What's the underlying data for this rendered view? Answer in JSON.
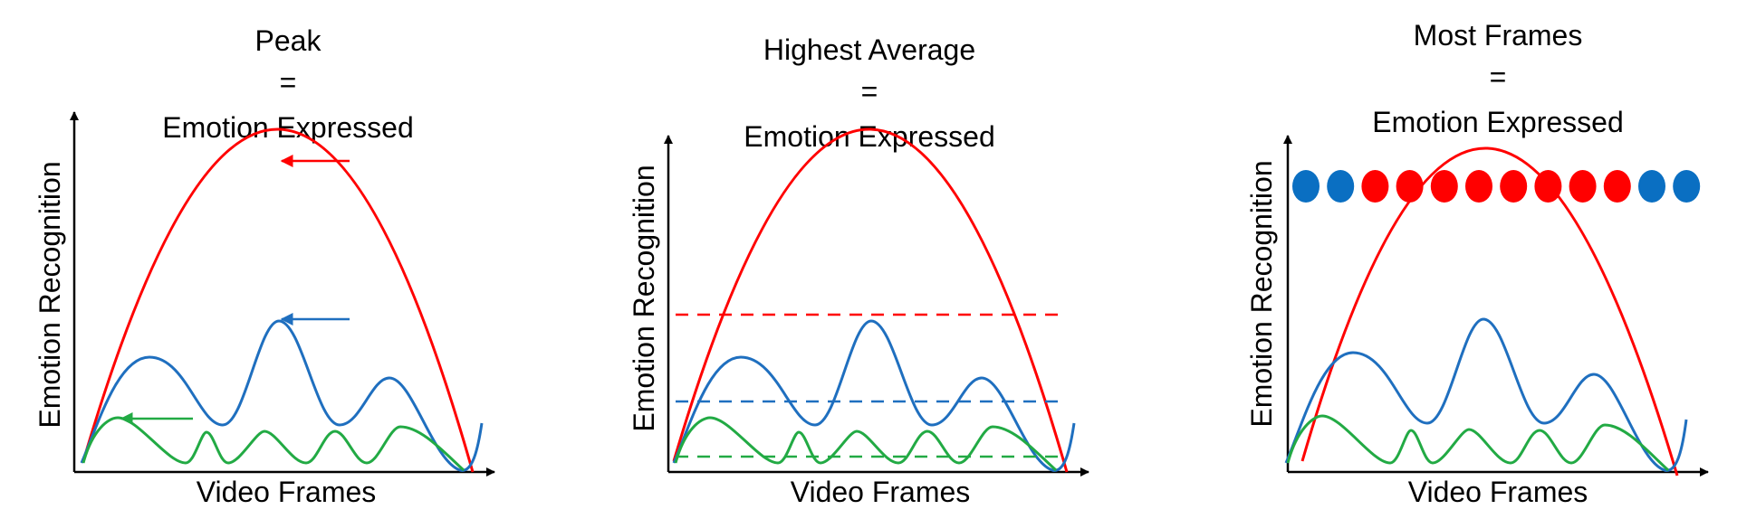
{
  "colors": {
    "red": "#ff0000",
    "blue": "#1f6fbf",
    "green": "#22aa44",
    "axis": "#000000",
    "dot_red": "#ff0000",
    "dot_blue": "#0a6fc2"
  },
  "panels": [
    {
      "id": "peak",
      "title": [
        "Peak",
        "=",
        "Emotion Expressed"
      ],
      "ylabel": "Emotion Recognition",
      "xlabel": "Video Frames",
      "markers": [
        "peak-arrows"
      ]
    },
    {
      "id": "highest-average",
      "title": [
        "Highest Average",
        "=",
        "Emotion Expressed"
      ],
      "ylabel": "Emotion Recognition",
      "xlabel": "Video Frames",
      "markers": [
        "average-lines"
      ]
    },
    {
      "id": "most-frames",
      "title": [
        "Most Frames",
        "=",
        "Emotion Expressed"
      ],
      "ylabel": "Emotion Recognition",
      "xlabel": "Video Frames",
      "markers": [
        "frame-dots"
      ],
      "frame_dot_colors": [
        "blue",
        "blue",
        "red",
        "red",
        "red",
        "red",
        "red",
        "red",
        "red",
        "red",
        "blue",
        "blue"
      ]
    }
  ]
}
